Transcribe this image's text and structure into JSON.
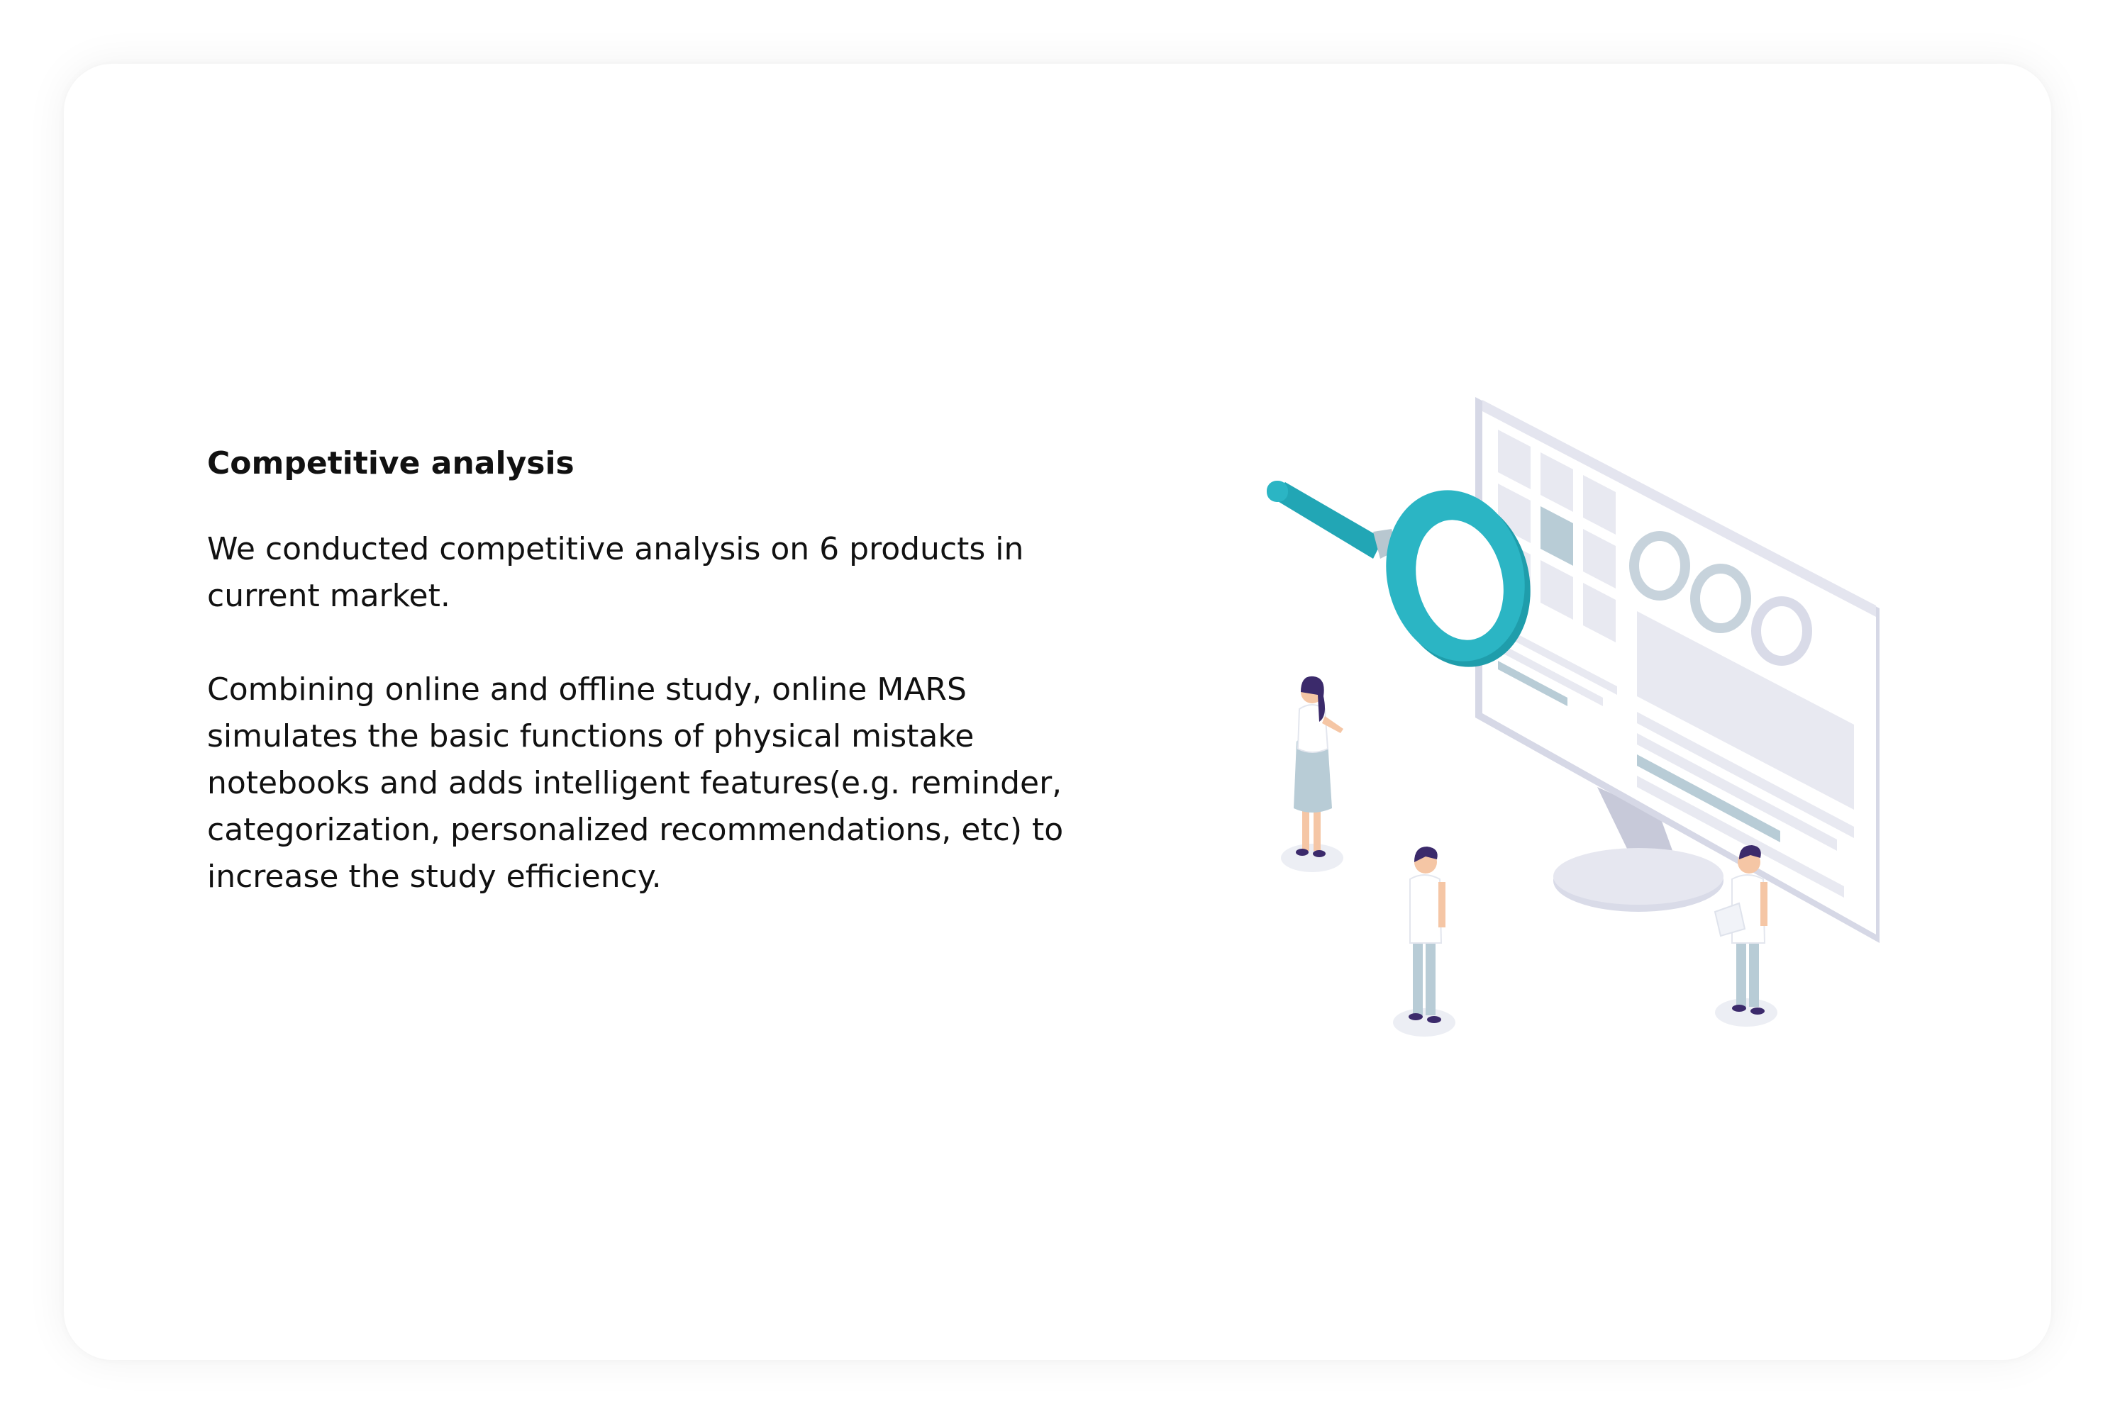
{
  "section": {
    "title": "Competitive analysis",
    "paragraphs": [
      "We conducted competitive analysis on 6 products in current market.",
      "Combining online and offline study, online MARS simulates the basic functions of physical mistake notebooks and adds intelligent features(e.g. reminder, categorization, personalized recommendations, etc) to increase the study efficiency."
    ]
  },
  "illustration": {
    "icons": [
      "monitor-icon",
      "magnifying-glass-icon",
      "person-icon"
    ],
    "colors": {
      "accent": "#2bb5c4",
      "monitor": "#d9dbe8",
      "panel": "#e8e9f1",
      "figure_dark": "#3b2a6b",
      "figure_light": "#b8ccd6"
    }
  }
}
